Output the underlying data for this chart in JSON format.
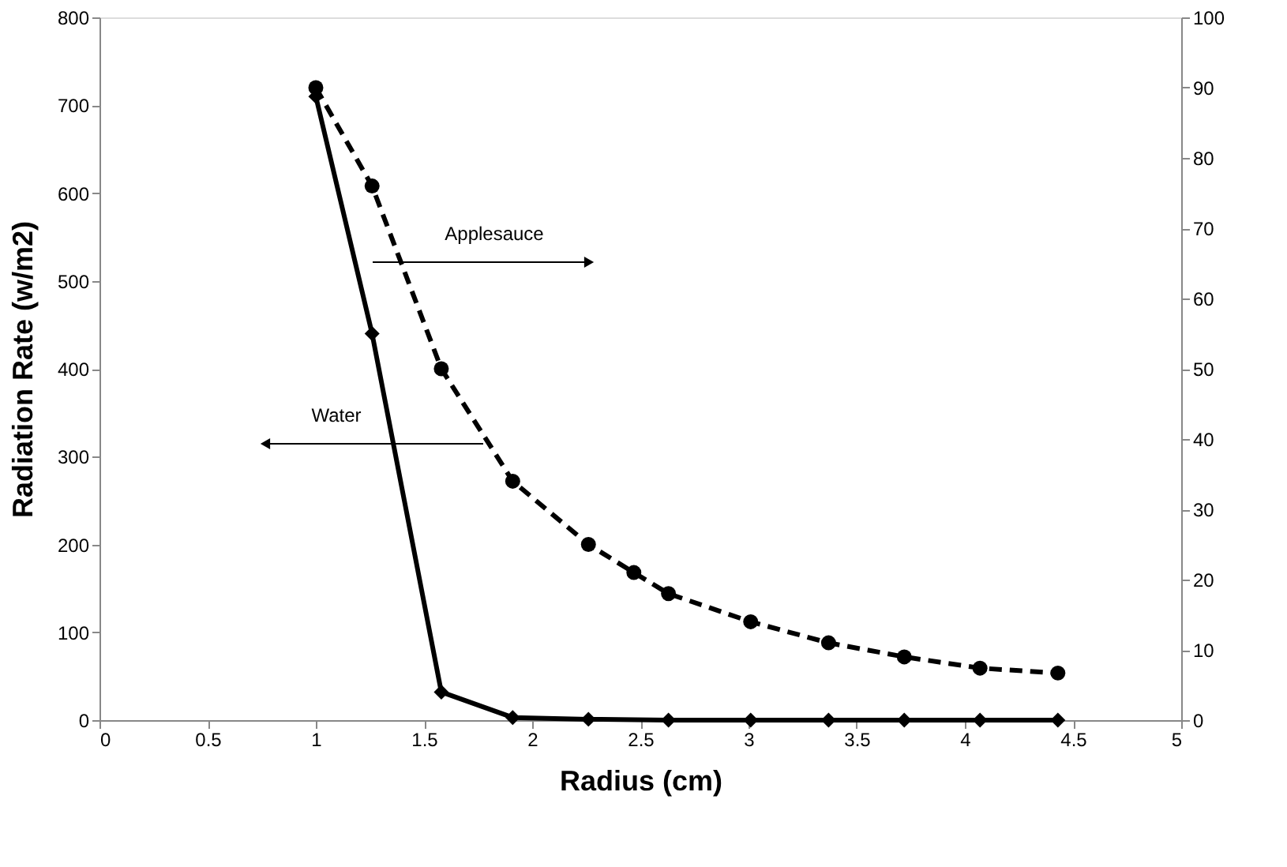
{
  "chart_data": {
    "type": "line",
    "xlabel": "Radius (cm)",
    "ylabel": "Radiation Rate (w/m2)",
    "xlim": [
      0,
      5
    ],
    "xticks": [
      0,
      0.5,
      1,
      1.5,
      2,
      2.5,
      3,
      3.5,
      4,
      4.5,
      5
    ],
    "ylim": [
      0,
      800
    ],
    "yticks": [
      0,
      100,
      200,
      300,
      400,
      500,
      600,
      700,
      800
    ],
    "y2lim": [
      0,
      100
    ],
    "y2ticks": [
      0,
      10,
      20,
      30,
      40,
      50,
      60,
      70,
      80,
      90,
      100
    ],
    "series": [
      {
        "color": "#000000",
        "marker": "diamond",
        "line_style": "solid",
        "x": [
          1.0,
          1.26,
          1.58,
          1.91,
          2.26,
          2.63,
          3.01,
          3.37,
          3.72,
          4.07,
          4.43
        ],
        "values": [
          710,
          440,
          32,
          3,
          1,
          0,
          0,
          0,
          0,
          0,
          0
        ]
      },
      {
        "color": "#000000",
        "marker": "circle",
        "line_style": "dashed",
        "axis": "y2",
        "x": [
          1.0,
          1.26,
          1.58,
          1.91,
          2.26,
          2.47,
          2.63,
          3.01,
          3.37,
          3.72,
          4.07,
          4.43
        ],
        "values": [
          90,
          76,
          50,
          34,
          25,
          21,
          18,
          14,
          11,
          9,
          7.4,
          6.7
        ]
      }
    ],
    "annotations": [
      "Applesauce",
      "Water"
    ]
  }
}
